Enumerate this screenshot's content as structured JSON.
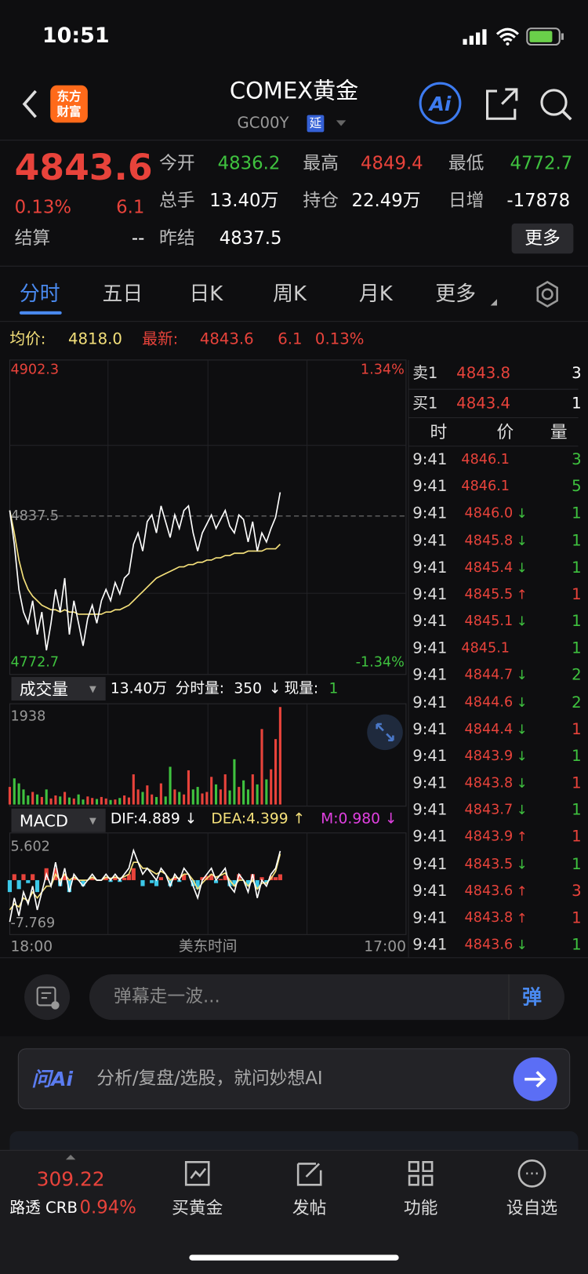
{
  "status_bar": {
    "time": "10:51"
  },
  "header": {
    "logo_top": "东方",
    "logo_bottom": "财富",
    "title": "COMEX黄金",
    "code": "GC00Y",
    "badge": "延",
    "ai": "Ai"
  },
  "quote": {
    "price": "4843.6",
    "change_pct": "0.13%",
    "change": "6.1",
    "fields": [
      {
        "label": "今开",
        "value": "4836.2",
        "color": "#3fc23f"
      },
      {
        "label": "最高",
        "value": "4849.4",
        "color": "#e8433b"
      },
      {
        "label": "最低",
        "value": "4772.7",
        "color": "#3fc23f"
      },
      {
        "label": "总手",
        "value": "13.40万",
        "color": "#ffffff"
      },
      {
        "label": "持仓",
        "value": "22.49万",
        "color": "#ffffff"
      },
      {
        "label": "日增",
        "value": "-17878",
        "color": "#ffffff"
      },
      {
        "label": "结算",
        "value": "--",
        "color": "#ffffff"
      },
      {
        "label": "昨结",
        "value": "4837.5",
        "color": "#ffffff"
      }
    ],
    "more": "更多"
  },
  "tabs": [
    "分时",
    "五日",
    "日K",
    "周K",
    "月K",
    "更多"
  ],
  "summary": {
    "avg_label": "均价:",
    "avg": "4818.0",
    "latest_label": "最新:",
    "latest": "4843.6",
    "change": "6.1",
    "change_pct": "0.13%"
  },
  "price_chart": {
    "ylim": [
      4772.7,
      4902.3
    ],
    "yticks": [
      4902.3,
      4837.5,
      4772.7
    ],
    "y2lim": [
      -1.34,
      1.34
    ],
    "y2ticks": [
      {
        "value": 1.34,
        "label": "1.34%"
      },
      {
        "value": -1.34,
        "label": "-1.34%"
      }
    ],
    "price_color": "#ffffff",
    "average_color": "#f4e07a",
    "price": [
      4840,
      4825,
      4805,
      4795,
      4790,
      4800,
      4785,
      4795,
      4778,
      4790,
      4805,
      4795,
      4810,
      4785,
      4800,
      4790,
      4780,
      4792,
      4798,
      4790,
      4800,
      4805,
      4800,
      4808,
      4803,
      4810,
      4812,
      4825,
      4830,
      4822,
      4835,
      4838,
      4830,
      4842,
      4835,
      4828,
      4838,
      4832,
      4840,
      4842,
      4830,
      4822,
      4830,
      4834,
      4838,
      4832,
      4836,
      4840,
      4833,
      4830,
      4838,
      4836,
      4826,
      4835,
      4822,
      4830,
      4826,
      4832,
      4837,
      4848
    ],
    "average": [
      4840,
      4830,
      4818,
      4810,
      4805,
      4802,
      4800,
      4798,
      4797,
      4796,
      4796,
      4795,
      4796,
      4795,
      4795,
      4794,
      4794,
      4794,
      4794,
      4794,
      4794,
      4795,
      4795,
      4796,
      4796,
      4797,
      4798,
      4800,
      4802,
      4804,
      4806,
      4808,
      4810,
      4811,
      4812,
      4813,
      4814,
      4815,
      4815,
      4816,
      4816,
      4817,
      4817,
      4818,
      4818,
      4819,
      4819,
      4820,
      4820,
      4821,
      4821,
      4821,
      4822,
      4822,
      4822,
      4822,
      4823,
      4823,
      4823,
      4825
    ],
    "x_labels": [
      "18:00",
      "美东时间",
      "17:00"
    ]
  },
  "volume": {
    "selector": "成交量",
    "total": "13.40万",
    "minute_label": "分时量:",
    "minute": "350",
    "minute_arrow": "↓",
    "now_label": "现量:",
    "now": "1",
    "ylim": [
      0,
      1938
    ],
    "yticks": [
      1938
    ],
    "values": [
      350,
      520,
      420,
      300,
      180,
      250,
      200,
      150,
      300,
      120,
      180,
      160,
      250,
      140,
      120,
      200,
      100,
      160,
      130,
      110,
      150,
      120,
      90,
      100,
      130,
      180,
      140,
      600,
      300,
      250,
      380,
      200,
      150,
      420,
      160,
      750,
      300,
      250,
      200,
      680,
      300,
      350,
      220,
      250,
      550,
      400,
      300,
      600,
      280,
      900,
      350,
      480,
      300,
      600,
      400,
      1500,
      500,
      700,
      1300,
      1938
    ]
  },
  "macd": {
    "selector": "MACD",
    "dif_label": "DIF:4.889 ↓",
    "dea_label": "DEA:4.399 ↑",
    "m_label": "M:0.980 ↓",
    "ylim": [
      -7.769,
      5.602
    ],
    "yticks": [
      5.602,
      -7.769
    ],
    "dif_color": "#ffffff",
    "dea_color": "#f4e07a",
    "m_color": "#e040e0",
    "dif": [
      -7,
      -3,
      -6,
      -2,
      -4,
      -1,
      -5,
      -2,
      1,
      -1,
      3,
      -1,
      2,
      -2,
      1,
      0,
      -1,
      0,
      1,
      0,
      0,
      1,
      0,
      1,
      0,
      1,
      2,
      5,
      3,
      1,
      2,
      1,
      0,
      2,
      1,
      -1,
      1,
      0,
      2,
      1,
      -1,
      -3,
      0,
      1,
      2,
      0,
      1,
      2,
      -1,
      -2,
      1,
      0,
      -2,
      1,
      -3,
      0,
      -1,
      1,
      2,
      4.889
    ],
    "dea": [
      -5,
      -4,
      -4.5,
      -3,
      -3.5,
      -2,
      -3,
      -2,
      -1,
      -1,
      1,
      0,
      1,
      0,
      0.5,
      0,
      0,
      0,
      0.5,
      0,
      0,
      0.5,
      0.3,
      0.5,
      0.3,
      0.6,
      1,
      3,
      3,
      2,
      2,
      1.5,
      1,
      1.5,
      1,
      0,
      0.5,
      0.3,
      1,
      1,
      0,
      -1.5,
      -0.5,
      0.3,
      1,
      0.5,
      0.8,
      1.2,
      0,
      -1,
      0,
      0,
      -1,
      0,
      -1.5,
      -0.5,
      -0.5,
      0.3,
      1.5,
      4.399
    ],
    "m": [
      -2,
      1,
      -1.5,
      1,
      -0.5,
      1,
      -2,
      0,
      2,
      0,
      2,
      -1,
      1,
      -2,
      0.5,
      0,
      -1,
      0,
      0.5,
      0,
      0,
      0.5,
      -0.3,
      0.5,
      -0.3,
      0.4,
      1,
      2,
      0,
      -1,
      0,
      -0.5,
      -1,
      0.5,
      0,
      -1,
      0.5,
      -0.3,
      1,
      0,
      -1,
      -1.5,
      0.5,
      0.7,
      1,
      -0.5,
      0.2,
      0.8,
      -1,
      -1,
      1,
      0,
      -1,
      1,
      -1.5,
      0.5,
      -0.5,
      0.7,
      0.5,
      0.98
    ]
  },
  "order_book": [
    {
      "side": "卖1",
      "price": "4843.8",
      "qty": "3"
    },
    {
      "side": "买1",
      "price": "4843.4",
      "qty": "1"
    }
  ],
  "trades": {
    "headers": [
      "时",
      "价",
      "量"
    ],
    "rows": [
      {
        "time": "9:41",
        "price": "4846.1",
        "arrow": "",
        "qty": "3",
        "qty_color": "#3fc23f"
      },
      {
        "time": "9:41",
        "price": "4846.1",
        "arrow": "",
        "qty": "5",
        "qty_color": "#3fc23f"
      },
      {
        "time": "9:41",
        "price": "4846.0",
        "arrow": "↓",
        "qty": "1",
        "qty_color": "#3fc23f"
      },
      {
        "time": "9:41",
        "price": "4845.8",
        "arrow": "↓",
        "qty": "1",
        "qty_color": "#3fc23f"
      },
      {
        "time": "9:41",
        "price": "4845.4",
        "arrow": "↓",
        "qty": "1",
        "qty_color": "#3fc23f"
      },
      {
        "time": "9:41",
        "price": "4845.5",
        "arrow": "↑",
        "qty": "1",
        "qty_color": "#e8433b"
      },
      {
        "time": "9:41",
        "price": "4845.1",
        "arrow": "↓",
        "qty": "1",
        "qty_color": "#3fc23f"
      },
      {
        "time": "9:41",
        "price": "4845.1",
        "arrow": "",
        "qty": "1",
        "qty_color": "#3fc23f"
      },
      {
        "time": "9:41",
        "price": "4844.7",
        "arrow": "↓",
        "qty": "2",
        "qty_color": "#3fc23f"
      },
      {
        "time": "9:41",
        "price": "4844.6",
        "arrow": "↓",
        "qty": "2",
        "qty_color": "#3fc23f"
      },
      {
        "time": "9:41",
        "price": "4844.4",
        "arrow": "↓",
        "qty": "1",
        "qty_color": "#e8433b"
      },
      {
        "time": "9:41",
        "price": "4843.9",
        "arrow": "↓",
        "qty": "1",
        "qty_color": "#3fc23f"
      },
      {
        "time": "9:41",
        "price": "4843.8",
        "arrow": "↓",
        "qty": "1",
        "qty_color": "#e8433b"
      },
      {
        "time": "9:41",
        "price": "4843.7",
        "arrow": "↓",
        "qty": "1",
        "qty_color": "#3fc23f"
      },
      {
        "time": "9:41",
        "price": "4843.9",
        "arrow": "↑",
        "qty": "1",
        "qty_color": "#e8433b"
      },
      {
        "time": "9:41",
        "price": "4843.5",
        "arrow": "↓",
        "qty": "1",
        "qty_color": "#3fc23f"
      },
      {
        "time": "9:41",
        "price": "4843.6",
        "arrow": "↑",
        "qty": "3",
        "qty_color": "#e8433b"
      },
      {
        "time": "9:41",
        "price": "4843.8",
        "arrow": "↑",
        "qty": "1",
        "qty_color": "#e8433b"
      },
      {
        "time": "9:41",
        "price": "4843.6",
        "arrow": "↓",
        "qty": "1",
        "qty_color": "#3fc23f"
      }
    ]
  },
  "comment": {
    "placeholder": "弹幕走一波...",
    "button": "弹"
  },
  "ai_bar": {
    "brand": "问Ai",
    "prompt": "分析/复盘/选股，就问妙想AI"
  },
  "bottom_nav": {
    "index_value": "309.22",
    "index_name": "路透 CRB",
    "index_change": "0.94%",
    "items": [
      "买黄金",
      "发帖",
      "功能",
      "设自选"
    ]
  }
}
